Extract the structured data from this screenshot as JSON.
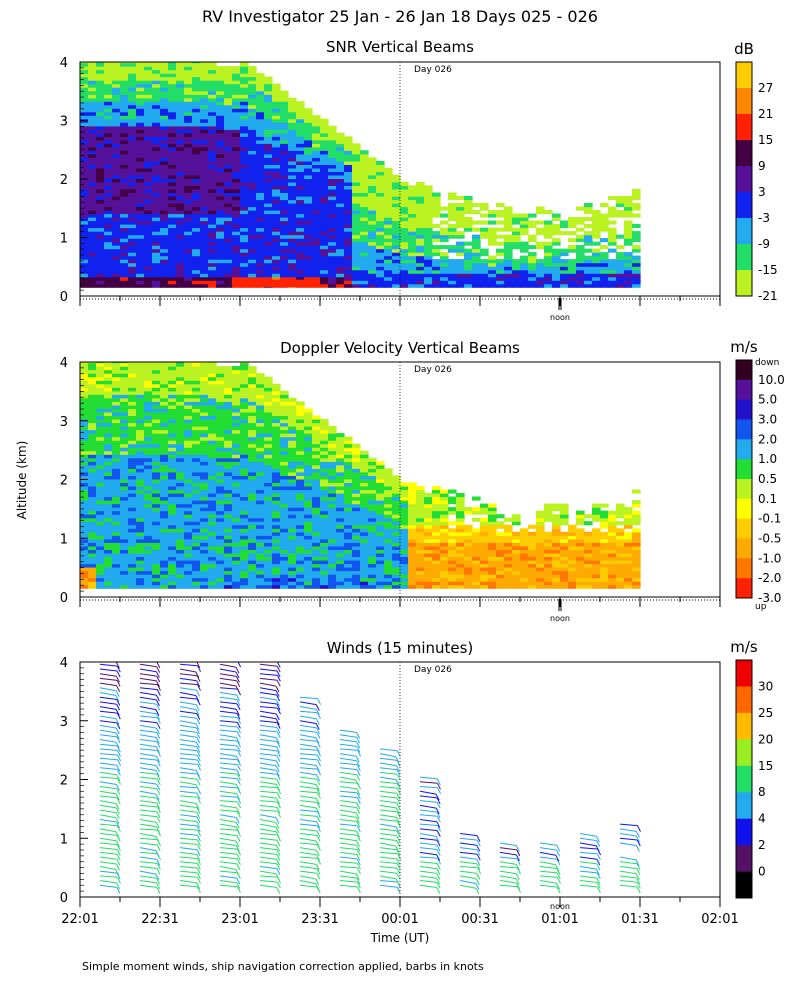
{
  "figure": {
    "title": "RV Investigator  25 Jan - 26 Jan 18 Days 025 - 026",
    "xlabel": "Time (UT)",
    "ylabel": "Altitude (km)",
    "footnote": "Simple moment winds, ship navigation correction applied, barbs in knots",
    "x_ticks": [
      "22:01",
      "22:31",
      "23:01",
      "23:31",
      "00:01",
      "00:31",
      "01:01",
      "01:31",
      "02:01"
    ],
    "y_ticks": [
      "0",
      "1",
      "2",
      "3",
      "4"
    ],
    "day_marker": "Day 026",
    "noon_marker": "noon"
  },
  "chart_data": [
    {
      "type": "heatmap",
      "title": "SNR Vertical Beams",
      "units": "dB",
      "x_range_minutes_since_2201": [
        0,
        240
      ],
      "ylim_km": [
        0,
        4
      ],
      "day_boundary_minutes": 120,
      "noon_minutes": 180,
      "colorbar_labels": [
        "27",
        "21",
        "15",
        "9",
        "3",
        "-3",
        "-9",
        "-15",
        "-21"
      ],
      "colors": [
        "#ffcc00",
        "#ff8800",
        "#ff2200",
        "#440044",
        "#551199",
        "#1122ee",
        "#22aaee",
        "#22dd66",
        "#bbf222"
      ],
      "echo_top_profile_km": [
        {
          "t": 0,
          "top": 4.0
        },
        {
          "t": 30,
          "top": 4.0
        },
        {
          "t": 60,
          "top": 4.0
        },
        {
          "t": 75,
          "top": 3.4
        },
        {
          "t": 90,
          "top": 3.0
        },
        {
          "t": 105,
          "top": 2.4
        },
        {
          "t": 120,
          "top": 2.0
        },
        {
          "t": 135,
          "top": 1.7
        },
        {
          "t": 150,
          "top": 1.4
        },
        {
          "t": 180,
          "top": 1.5
        },
        {
          "t": 210,
          "top": 1.8
        },
        {
          "t": 210,
          "top": 0
        }
      ]
    },
    {
      "type": "heatmap",
      "title": "Doppler Velocity Vertical Beams",
      "units": "m/s",
      "x_range_minutes_since_2201": [
        0,
        240
      ],
      "ylim_km": [
        0,
        4
      ],
      "day_boundary_minutes": 120,
      "noon_minutes": 180,
      "colorbar_top_label": "down",
      "colorbar_bottom_label": "up",
      "colorbar_labels": [
        "10.0",
        "5.0",
        "3.0",
        "2.0",
        "1.0",
        "0.5",
        "0.1",
        "-0.1",
        "-0.5",
        "-1.0",
        "-2.0",
        "-3.0"
      ],
      "colors": [
        "#330022",
        "#551199",
        "#2211cc",
        "#1155ee",
        "#22aaee",
        "#22dd33",
        "#bbf222",
        "#ffff00",
        "#ffcc00",
        "#ffaa00",
        "#ff7700",
        "#ff2200"
      ]
    },
    {
      "type": "wind_barbs",
      "title": "Winds (15 minutes)",
      "units": "m/s",
      "x_range_minutes_since_2201": [
        0,
        240
      ],
      "ylim_km": [
        0,
        4
      ],
      "day_boundary_minutes": 120,
      "colorbar_labels": [
        "30",
        "25",
        "20",
        "15",
        "8",
        "4",
        "2",
        "0"
      ],
      "colors": [
        "#ee0000",
        "#ff6600",
        "#ffbb00",
        "#99ee22",
        "#22dd66",
        "#22aaee",
        "#1111ee",
        "#551166",
        "#000000"
      ],
      "profile_times_minutes": [
        7.5,
        22.5,
        37.5,
        52.5,
        67.5,
        82.5,
        97.5,
        112.5,
        127.5,
        142.5,
        157.5,
        172.5,
        187.5,
        202.5
      ],
      "profile_top_km": [
        4.05,
        4.05,
        4.1,
        4.05,
        4.05,
        3.45,
        2.9,
        2.6,
        2.05,
        1.15,
        0.95,
        0.95,
        1.15,
        1.3
      ]
    }
  ]
}
